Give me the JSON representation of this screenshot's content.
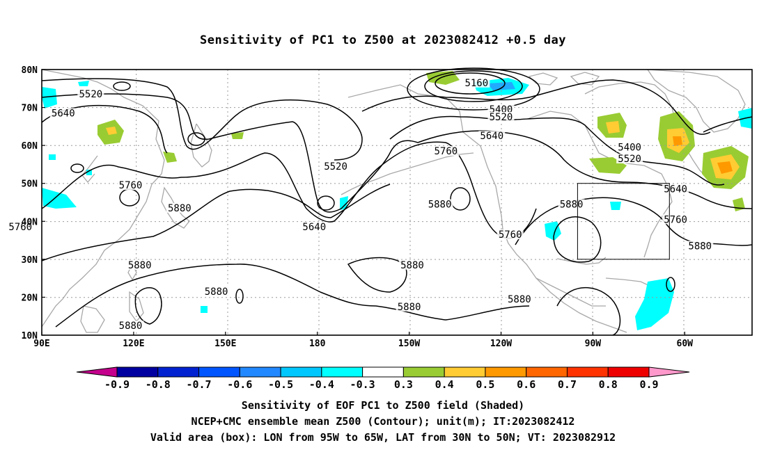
{
  "title": "Sensitivity of PC1 to Z500 at 2023082412 +0.5 day",
  "map": {
    "lat_ticks": [
      "80N",
      "70N",
      "60N",
      "50N",
      "40N",
      "30N",
      "20N",
      "10N"
    ],
    "lon_ticks": [
      "90E",
      "120E",
      "150E",
      "180",
      "150W",
      "120W",
      "90W",
      "60W"
    ],
    "contour_labels": [
      {
        "text": "5520",
        "lon": 106,
        "lat": 73
      },
      {
        "text": "5640",
        "lon": 97,
        "lat": 68
      },
      {
        "text": "5760",
        "lon": 119,
        "lat": 49
      },
      {
        "text": "5760",
        "lon": 83,
        "lat": 38
      },
      {
        "text": "5880",
        "lon": 135,
        "lat": 43
      },
      {
        "text": "5880",
        "lon": 122,
        "lat": 28
      },
      {
        "text": "5880",
        "lon": 147,
        "lat": 21
      },
      {
        "text": "5880",
        "lon": 119,
        "lat": 12
      },
      {
        "text": "5640",
        "lon": 179,
        "lat": 38
      },
      {
        "text": "5520",
        "lon": 186,
        "lat": 54
      },
      {
        "text": "5160",
        "lon": 232,
        "lat": 76
      },
      {
        "text": "5400",
        "lon": 240,
        "lat": 69
      },
      {
        "text": "5520",
        "lon": 240,
        "lat": 67
      },
      {
        "text": "5640",
        "lon": 237,
        "lat": 62
      },
      {
        "text": "5760",
        "lon": 222,
        "lat": 58
      },
      {
        "text": "5880",
        "lon": 220,
        "lat": 44
      },
      {
        "text": "5760",
        "lon": 243,
        "lat": 36
      },
      {
        "text": "5880",
        "lon": 211,
        "lat": 28
      },
      {
        "text": "5880",
        "lon": 210,
        "lat": 17
      },
      {
        "text": "5880",
        "lon": 246,
        "lat": 19
      },
      {
        "text": "5880",
        "lon": 263,
        "lat": 44
      },
      {
        "text": "5400",
        "lon": 282,
        "lat": 59
      },
      {
        "text": "5520",
        "lon": 282,
        "lat": 56
      },
      {
        "text": "5640",
        "lon": 297,
        "lat": 48
      },
      {
        "text": "5760",
        "lon": 297,
        "lat": 40
      },
      {
        "text": "5880",
        "lon": 305,
        "lat": 33
      }
    ],
    "valid_box": {
      "lon_min": 265,
      "lon_max": 295,
      "lat_min": 30,
      "lat_max": 50
    }
  },
  "colorbar": {
    "labels": [
      "-0.9",
      "-0.8",
      "-0.7",
      "-0.6",
      "-0.5",
      "-0.4",
      "-0.3",
      "0.3",
      "0.4",
      "0.5",
      "0.6",
      "0.7",
      "0.8",
      "0.9"
    ],
    "colors": [
      "#c4008c",
      "#0000a0",
      "#0022d0",
      "#0055ff",
      "#2288ff",
      "#00c8ff",
      "#00ffff",
      "#ffffff",
      "#99cc33",
      "#ffcc33",
      "#ff9900",
      "#ff6600",
      "#ff3300",
      "#ee0000",
      "#ff99cc"
    ]
  },
  "captions": [
    "Sensitivity of EOF PC1 to Z500 field (Shaded)",
    "NCEP+CMC ensemble mean Z500 (Contour); unit(m); IT:2023082412",
    "Valid area (box): LON from 95W to 65W, LAT from 30N to 50N; VT: 2023082912"
  ]
}
